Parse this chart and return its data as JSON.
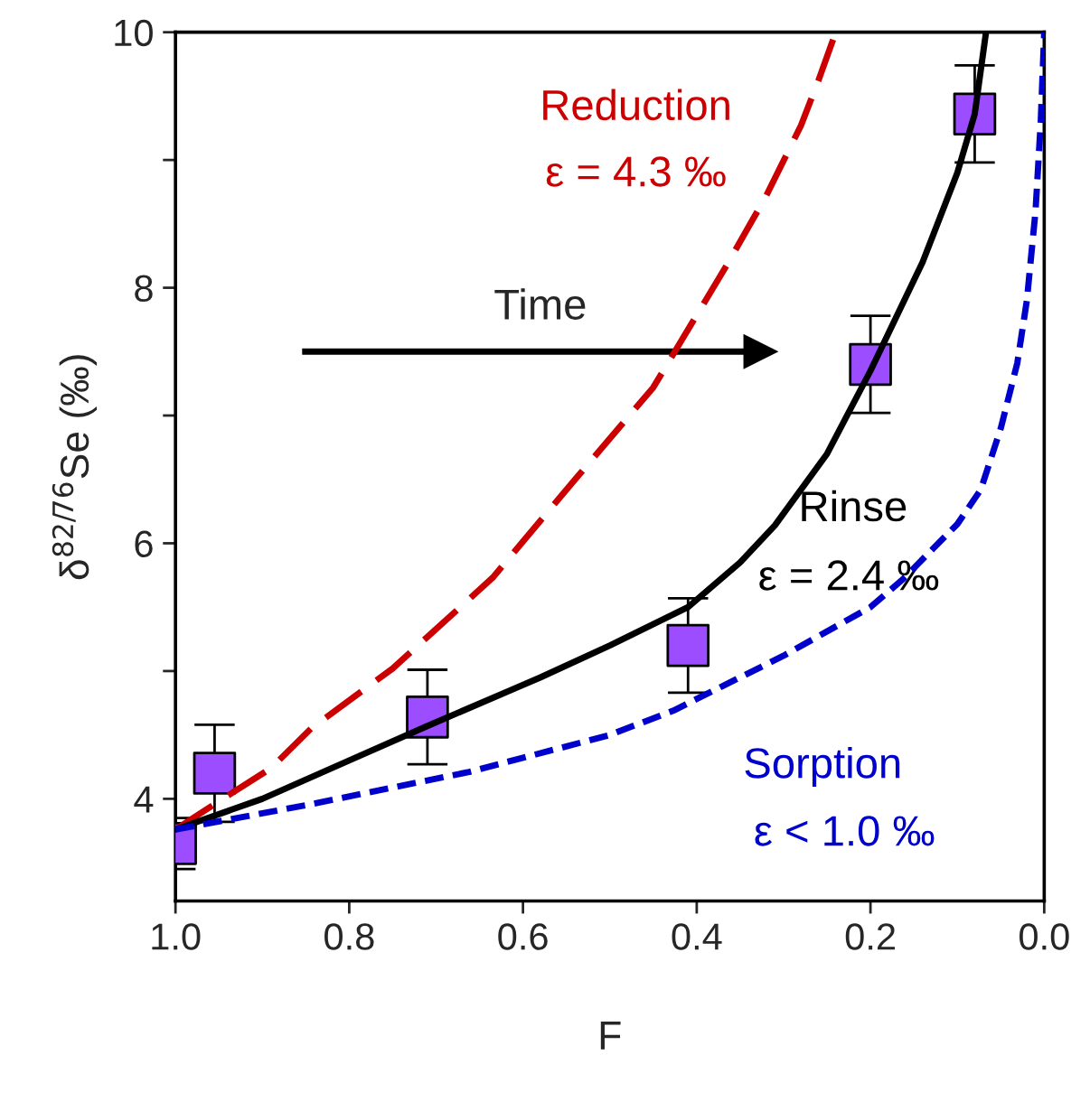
{
  "chart_data": {
    "type": "scatter",
    "xlabel": "F",
    "ylabel": "δ$^{82/76}$Se (‰)",
    "xlim": [
      1.0,
      0.0
    ],
    "xticks": [
      {
        "value": 1.0,
        "label": "1.0"
      },
      {
        "value": 0.8,
        "label": "0.8"
      },
      {
        "value": 0.6,
        "label": "0.6"
      },
      {
        "value": 0.4,
        "label": "0.4"
      },
      {
        "value": 0.2,
        "label": "0.2"
      },
      {
        "value": 0.0,
        "label": "0.0"
      }
    ],
    "ylim": [
      3.2,
      10
    ],
    "yticks": [
      4,
      {
        "value": 5,
        "label": null
      },
      6,
      {
        "value": 7,
        "label": null
      },
      8,
      {
        "value": 9,
        "label": null
      },
      10
    ],
    "series": [
      {
        "name": "Reduction",
        "type": "line",
        "color": "#cc0000",
        "line_style": "dashed",
        "marker": "none",
        "x": [
          1.0,
          0.95,
          0.89,
          0.844,
          0.75,
          0.635,
          0.54,
          0.45,
          0.366,
          0.32,
          0.28,
          0.26,
          0.24
        ],
        "values": [
          3.76,
          3.98,
          4.24,
          4.55,
          5.02,
          5.73,
          6.5,
          7.22,
          8.17,
          8.72,
          9.27,
          9.62,
          10.0
        ]
      },
      {
        "name": "Rinse",
        "type": "line",
        "color": "#000000",
        "line_style": "solid",
        "marker": "none",
        "x": [
          1.0,
          0.9,
          0.8,
          0.71,
          0.58,
          0.5,
          0.41,
          0.35,
          0.31,
          0.25,
          0.2,
          0.14,
          0.1,
          0.08,
          0.067
        ],
        "values": [
          3.76,
          4.0,
          4.3,
          4.57,
          4.95,
          5.2,
          5.5,
          5.85,
          6.14,
          6.7,
          7.35,
          8.2,
          8.9,
          9.36,
          10.0
        ]
      },
      {
        "name": "Sorption",
        "type": "line",
        "color": "#0000cc",
        "line_style": "dashed",
        "marker": "none",
        "x": [
          1.0,
          0.85,
          0.662,
          0.5,
          0.427,
          0.3,
          0.2,
          0.1625,
          0.1,
          0.073,
          0.05,
          0.031,
          0.02,
          0.01,
          0.004,
          0.0
        ],
        "values": [
          3.76,
          3.95,
          4.21,
          4.5,
          4.69,
          5.12,
          5.5,
          5.72,
          6.15,
          6.42,
          6.9,
          7.41,
          7.9,
          8.6,
          9.3,
          10.0
        ]
      },
      {
        "type": "scatter",
        "color": "#9b4dff",
        "marker": "square",
        "x": [
          1.0,
          0.955,
          0.71,
          0.41,
          0.2,
          0.08
        ],
        "values": [
          3.65,
          4.2,
          4.64,
          5.2,
          7.4,
          9.36
        ],
        "errors": [
          0.2,
          0.38,
          0.37,
          0.37,
          0.38,
          0.38
        ]
      }
    ],
    "annotations": [
      "ε = 4.3 ‰",
      "ε = 2.4 ‰",
      "ε < 1.0 ‰",
      "Time"
    ]
  }
}
